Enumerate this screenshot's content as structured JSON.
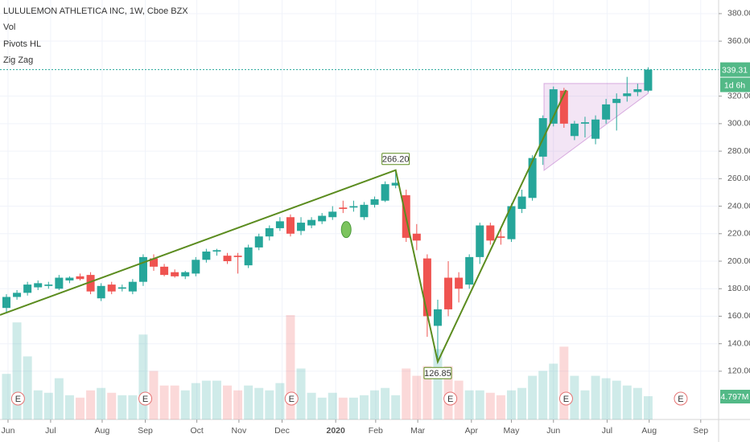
{
  "chart_data": {
    "type": "candlestick",
    "title": "LULULEMON ATHLETICA INC, 1W, Cboe BZX",
    "indicators": [
      "Vol",
      "Pivots HL",
      "Zig Zag"
    ],
    "up_color": "#26a69a",
    "down_color": "#ef5350",
    "x": [
      0,
      1,
      2,
      3,
      4,
      5,
      6,
      7,
      8,
      9,
      10,
      11,
      12,
      13,
      14,
      15,
      16,
      17,
      18,
      19,
      20,
      21,
      22,
      23,
      24,
      25,
      26,
      27,
      28,
      29,
      30,
      31,
      32,
      33,
      34,
      35,
      36,
      37,
      38,
      39,
      40,
      41,
      42,
      43,
      44,
      45,
      46,
      47,
      48,
      49,
      50,
      51,
      52,
      53,
      54,
      55,
      56,
      57,
      58,
      59,
      60,
      61
    ],
    "open": [
      166,
      174,
      177,
      181,
      182,
      180,
      186,
      189,
      190,
      173,
      183,
      180,
      178,
      185,
      202,
      196,
      192,
      189,
      191,
      201,
      207,
      204,
      204,
      197,
      210,
      218,
      224,
      232,
      222,
      226,
      229,
      232,
      239,
      239,
      232,
      241,
      244,
      255,
      248,
      220,
      202,
      153,
      188,
      188,
      183,
      203,
      226,
      218,
      216,
      238,
      246,
      276,
      300,
      324,
      291,
      300,
      289,
      303,
      315,
      320,
      323,
      324
    ],
    "high": [
      176,
      179,
      185,
      186,
      185,
      190,
      189,
      191,
      192,
      184,
      185,
      183,
      187,
      205,
      205,
      198,
      194,
      193,
      203,
      209,
      209,
      206,
      206,
      212,
      220,
      226,
      232,
      234,
      232,
      232,
      235,
      240,
      244,
      244,
      243,
      247,
      258,
      266.2,
      252,
      227,
      205,
      172,
      200,
      192,
      205,
      228,
      228,
      224,
      242,
      252,
      277,
      306,
      327,
      326,
      302,
      305,
      306,
      318,
      322,
      334,
      329,
      341
    ],
    "low": [
      163,
      172,
      175,
      179,
      180,
      179,
      184,
      186,
      176,
      171,
      176,
      178,
      176,
      182,
      193,
      189,
      188,
      187,
      189,
      199,
      204,
      198,
      191,
      195,
      208,
      215,
      222,
      218,
      219,
      224,
      227,
      230,
      235,
      236,
      230,
      239,
      243,
      253,
      214,
      208,
      145,
      126.85,
      160,
      170,
      180,
      198,
      212,
      212,
      214,
      235,
      244,
      270,
      298,
      297,
      288,
      290,
      285,
      300,
      295,
      316,
      320,
      323
    ],
    "close": [
      174,
      177,
      183,
      184,
      183,
      188,
      188,
      187,
      178,
      182,
      178,
      181,
      185,
      203,
      196,
      190,
      189,
      192,
      201,
      207,
      208,
      200,
      203,
      210,
      218,
      224,
      229,
      220,
      228,
      230,
      233,
      236,
      238,
      240,
      241,
      245,
      256,
      257,
      217,
      215,
      160,
      165,
      165,
      180,
      203,
      226,
      215,
      217,
      240,
      247,
      275,
      304,
      325,
      300,
      300,
      301,
      303,
      314,
      318,
      322,
      325,
      339.31
    ],
    "volume": [
      9.4,
      20,
      13,
      6,
      5.5,
      8.5,
      5,
      4.5,
      6,
      6.5,
      5.5,
      5,
      5,
      17.5,
      10,
      7,
      7,
      6,
      7.5,
      8,
      8,
      7,
      6,
      7,
      6.5,
      6,
      7.5,
      21.5,
      10.5,
      5.5,
      4.5,
      5.5,
      4.5,
      4.5,
      5,
      6,
      6.5,
      5,
      10.5,
      9,
      11,
      14.5,
      11,
      8,
      6,
      6,
      5.5,
      5,
      6,
      6.5,
      9,
      10,
      11.5,
      15,
      9,
      6,
      9,
      8.5,
      8,
      7,
      6.5,
      4.797
    ],
    "last_volume_label": "4.797M",
    "countdown": "1d 6h",
    "volume_lim": [
      0,
      24
    ],
    "xlim": [
      -0.612,
      67.7
    ],
    "ylim": [
      84.9,
      389.9
    ],
    "yticks": [
      {
        "value": 120,
        "label": "120.00"
      },
      {
        "value": 140,
        "label": "140.00"
      },
      {
        "value": 160,
        "label": "160.00"
      },
      {
        "value": 180,
        "label": "180.00"
      },
      {
        "value": 200,
        "label": "200.00"
      },
      {
        "value": 220,
        "label": "220.00"
      },
      {
        "value": 240,
        "label": "240.00"
      },
      {
        "value": 260,
        "label": "260.00"
      },
      {
        "value": 280,
        "label": "280.00"
      },
      {
        "value": 300,
        "label": "300.00"
      },
      {
        "value": 320,
        "label": "320.00"
      },
      {
        "value": 360,
        "label": "360.00"
      },
      {
        "value": 380,
        "label": "380.00"
      }
    ],
    "xticks": [
      {
        "value": 0.15,
        "label": "Jun"
      },
      {
        "value": 4.2,
        "label": "Jul"
      },
      {
        "value": 9.1,
        "label": "Aug"
      },
      {
        "value": 13.2,
        "label": "Sep"
      },
      {
        "value": 18.1,
        "label": "Oct"
      },
      {
        "value": 22.1,
        "label": "Nov"
      },
      {
        "value": 26.2,
        "label": "Dec"
      },
      {
        "value": 31.3,
        "label": "2020"
      },
      {
        "value": 35.1,
        "label": "Feb"
      },
      {
        "value": 39.1,
        "label": "Mar"
      },
      {
        "value": 44.2,
        "label": "Apr"
      },
      {
        "value": 48.0,
        "label": "May"
      },
      {
        "value": 52.0,
        "label": "Jun"
      },
      {
        "value": 57.1,
        "label": "Jul"
      },
      {
        "value": 61.1,
        "label": "Aug"
      },
      {
        "value": 66.0,
        "label": "Sep"
      }
    ],
    "grid": true,
    "zigzag": {
      "color": "#5b8c1f",
      "x": [
        -0.612,
        37,
        41,
        53.2
      ],
      "values": [
        160.9,
        266.2,
        126.85,
        324.5
      ],
      "value_labels": [
        null,
        "266.20",
        "126.85",
        null
      ]
    },
    "pattern": {
      "color": "#9c27b0",
      "x": [
        51.1,
        61
      ],
      "upper": [
        329.2,
        329.2
      ],
      "lower": [
        266,
        322
      ]
    },
    "pivot_marker": {
      "x": 32.3,
      "value": 223,
      "color": "#7cc45e"
    },
    "earnings": {
      "label": "E",
      "color": "#e57373",
      "x": [
        1.1,
        13.2,
        27.1,
        42.2,
        53.2,
        64.1
      ]
    }
  }
}
